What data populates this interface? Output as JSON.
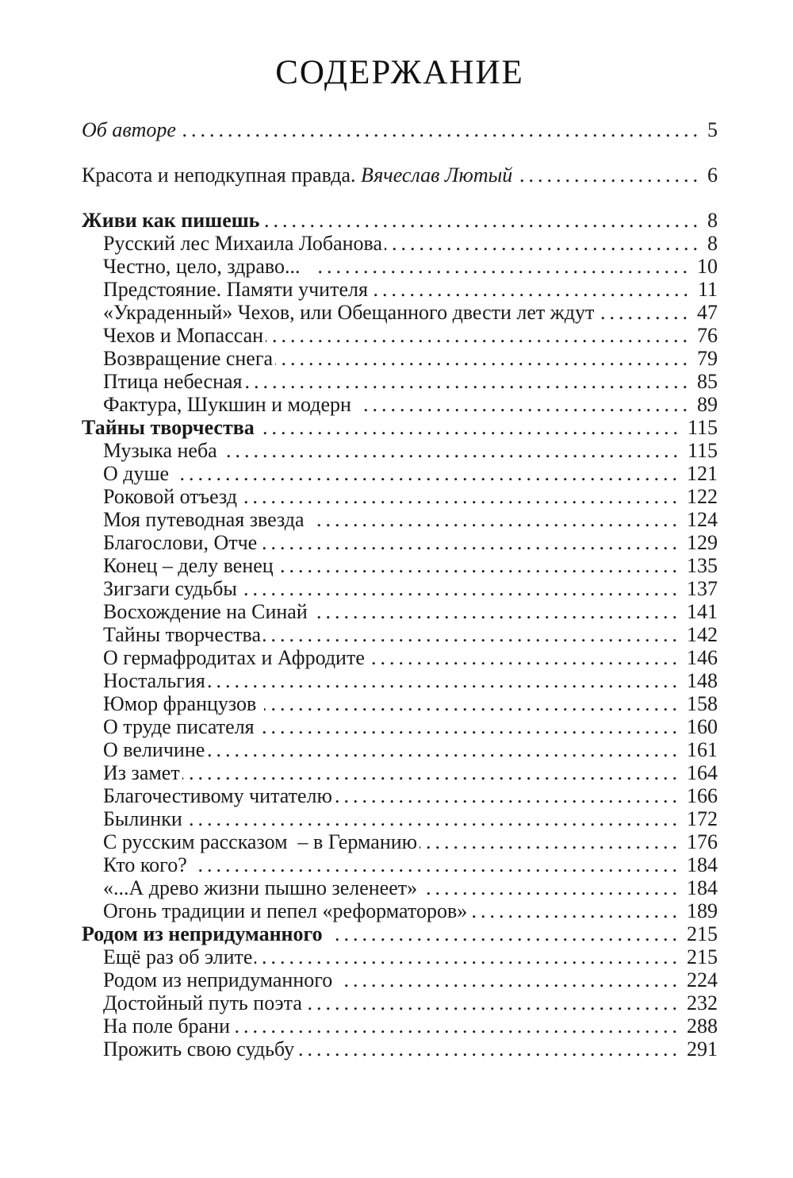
{
  "page": {
    "title": "СОДЕРЖАНИЕ"
  },
  "toc": {
    "entries": [
      {
        "label": "Об авторе",
        "page": "5",
        "variant": "italic",
        "indent": false,
        "spaced": true
      },
      {
        "label": "Красота и неподкупная правда. ",
        "label_italic": "Вячеслав Лютый ",
        "page": "6",
        "variant": "normal",
        "indent": false,
        "spaced": true
      },
      {
        "label": "Живи как пишешь",
        "page": "8",
        "variant": "bold",
        "indent": false
      },
      {
        "label": "Русский лес Михаила Лобанова",
        "page": "8",
        "variant": "normal",
        "indent": true
      },
      {
        "label": "Честно, цело, здраво...  ",
        "page": "10",
        "variant": "normal",
        "indent": true
      },
      {
        "label": "Предстояние. Памяти учителя",
        "page": "11",
        "variant": "normal",
        "indent": true
      },
      {
        "label": "«Украденный» Чехов, или Обещанного двести лет ждут",
        "page": "47",
        "variant": "normal",
        "indent": true
      },
      {
        "label": "Чехов и Мопассан",
        "page": "76",
        "variant": "normal",
        "indent": true
      },
      {
        "label": "Возвращение снега",
        "page": "79",
        "variant": "normal",
        "indent": true
      },
      {
        "label": "Птица небесная",
        "page": "85",
        "variant": "normal",
        "indent": true
      },
      {
        "label": "Фактура, Шукшин и модерн ",
        "page": "89",
        "variant": "normal",
        "indent": true
      },
      {
        "label": "Тайны творчества ",
        "page": "115",
        "variant": "bold",
        "indent": false
      },
      {
        "label": "Музыка неба ",
        "page": "115",
        "variant": "normal",
        "indent": true
      },
      {
        "label": "О душе ",
        "page": "121",
        "variant": "normal",
        "indent": true
      },
      {
        "label": "Роковой отъезд",
        "page": "122",
        "variant": "normal",
        "indent": true
      },
      {
        "label": "Моя путеводная звезда ",
        "page": "124",
        "variant": "normal",
        "indent": true
      },
      {
        "label": "Благослови, Отче",
        "page": "129",
        "variant": "normal",
        "indent": true
      },
      {
        "label": "Конец – делу венец",
        "page": "135",
        "variant": "normal",
        "indent": true
      },
      {
        "label": "Зигзаги судьбы ",
        "page": "137",
        "variant": "normal",
        "indent": true
      },
      {
        "label": "Восхождение на Синай ",
        "page": "141",
        "variant": "normal",
        "indent": true
      },
      {
        "label": "Тайны творчества",
        "page": "142",
        "variant": "normal",
        "indent": true
      },
      {
        "label": "О гермафродитах и Афродите ",
        "page": "146",
        "variant": "normal",
        "indent": true
      },
      {
        "label": "Ностальгия",
        "page": "148",
        "variant": "normal",
        "indent": true
      },
      {
        "label": "Юмор французов ",
        "page": "158",
        "variant": "normal",
        "indent": true
      },
      {
        "label": "О труде писателя",
        "page": "160",
        "variant": "normal",
        "indent": true
      },
      {
        "label": "О величине",
        "page": "161",
        "variant": "normal",
        "indent": true
      },
      {
        "label": "Из замет",
        "page": "164",
        "variant": "normal",
        "indent": true
      },
      {
        "label": "Благочестивому читателю",
        "page": "166",
        "variant": "normal",
        "indent": true
      },
      {
        "label": "Былинки ",
        "page": "172",
        "variant": "normal",
        "indent": true
      },
      {
        "label": "С русским рассказом  – в Германию",
        "page": "176",
        "variant": "normal",
        "indent": true
      },
      {
        "label": "Кто кого? ",
        "page": "184",
        "variant": "normal",
        "indent": true
      },
      {
        "label": "«...А древо жизни пышно зеленеет» ",
        "page": "184",
        "variant": "normal",
        "indent": true
      },
      {
        "label": "Огонь традиции и пепел «реформаторов»",
        "page": "189",
        "variant": "normal",
        "indent": true
      },
      {
        "label": "Родом из непридуманного ",
        "page": "215",
        "variant": "bold",
        "indent": false
      },
      {
        "label": "Ещё раз об элите",
        "page": "215",
        "variant": "normal",
        "indent": true
      },
      {
        "label": "Родом из непридуманного  ",
        "page": "224",
        "variant": "normal",
        "indent": true
      },
      {
        "label": "Достойный путь поэта",
        "page": "232",
        "variant": "normal",
        "indent": true
      },
      {
        "label": "На поле брани",
        "page": "288",
        "variant": "normal",
        "indent": true
      },
      {
        "label": "Прожить свою судьбу",
        "page": "291",
        "variant": "normal",
        "indent": true
      }
    ]
  }
}
